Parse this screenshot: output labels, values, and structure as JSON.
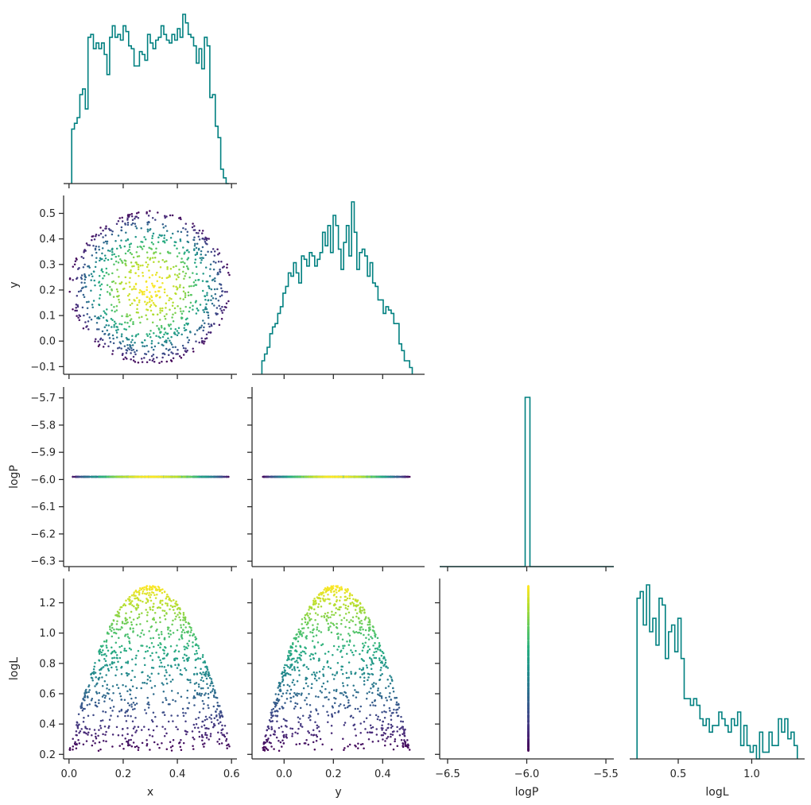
{
  "colors": {
    "hist": "#008080",
    "viridis": [
      "#440154",
      "#472d7b",
      "#3b528b",
      "#2c728e",
      "#21918c",
      "#28ae80",
      "#5ec962",
      "#addc30",
      "#fde725"
    ]
  },
  "chart_data": [
    {
      "type": "histogram",
      "panel": "x-hist",
      "variable": "x",
      "xlim": [
        -0.02,
        0.62
      ],
      "xticks": [
        0.0,
        0.2,
        0.4,
        0.6
      ],
      "bin_range": [
        0.01,
        0.59
      ],
      "counts": [
        19,
        21,
        23,
        31,
        33,
        26,
        51,
        52,
        47,
        49,
        47,
        49,
        45,
        38,
        51,
        55,
        51,
        52,
        50,
        55,
        53,
        48,
        47,
        41,
        41,
        46,
        45,
        43,
        52,
        49,
        47,
        50,
        51,
        55,
        52,
        50,
        49,
        52,
        50,
        54,
        51,
        59,
        56,
        52,
        51,
        48,
        42,
        47,
        40,
        51,
        48,
        30,
        31,
        20,
        16,
        5,
        2,
        0
      ]
    },
    {
      "type": "scatter",
      "panel": "y-vs-x",
      "xvar": "x",
      "yvar": "y",
      "xlim": [
        -0.02,
        0.62
      ],
      "ylim": [
        -0.13,
        0.57
      ],
      "xticks": [
        0.0,
        0.2,
        0.4,
        0.6
      ],
      "yticks": [
        -0.1,
        0.0,
        0.1,
        0.2,
        0.3,
        0.4,
        0.5
      ],
      "ytick_labels": [
        "−0.1",
        "0.0",
        "0.1",
        "0.2",
        "0.3",
        "0.4",
        "0.5"
      ],
      "ylabel": "y",
      "n_points": 1000,
      "center": [
        0.3,
        0.21
      ],
      "radius": 0.3,
      "color_by": "logL"
    },
    {
      "type": "histogram",
      "panel": "y-hist",
      "variable": "y",
      "xlim": [
        -0.13,
        0.57
      ],
      "xticks": [
        0.0,
        0.2,
        0.4
      ],
      "bin_range": [
        -0.09,
        0.52
      ],
      "counts": [
        4,
        6,
        8,
        12,
        14,
        15,
        18,
        20,
        24,
        26,
        30,
        29,
        33,
        30,
        27,
        35,
        34,
        32,
        36,
        35,
        32,
        34,
        36,
        42,
        38,
        44,
        36,
        47,
        44,
        37,
        31,
        39,
        44,
        35,
        51,
        42,
        31,
        36,
        37,
        35,
        29,
        33,
        27,
        26,
        22,
        22,
        18,
        20,
        19,
        18,
        15,
        15,
        9,
        7,
        4,
        4,
        2
      ]
    },
    {
      "type": "scatter",
      "panel": "logP-vs-x",
      "xvar": "x",
      "yvar": "logP",
      "xlim": [
        -0.02,
        0.62
      ],
      "ylim": [
        -6.32,
        -5.66
      ],
      "xticks": [
        0.0,
        0.2,
        0.4,
        0.6
      ],
      "yticks": [
        -5.7,
        -5.8,
        -5.9,
        -6.0,
        -6.1,
        -6.2,
        -6.3
      ],
      "ytick_labels": [
        "−5.7",
        "−5.8",
        "−5.9",
        "−6.0",
        "−6.1",
        "−6.2",
        "−6.3"
      ],
      "ylabel": "logP",
      "constant_y": -5.99,
      "x_range": [
        0.01,
        0.59
      ],
      "color_by": "logL"
    },
    {
      "type": "scatter",
      "panel": "logP-vs-y",
      "xvar": "y",
      "yvar": "logP",
      "xlim": [
        -0.13,
        0.57
      ],
      "ylim": [
        -6.32,
        -5.66
      ],
      "xticks": [
        0.0,
        0.2,
        0.4
      ],
      "yticks": [
        -5.7,
        -5.8,
        -5.9,
        -6.0,
        -6.1,
        -6.2,
        -6.3
      ],
      "constant_y": -5.99,
      "x_range": [
        -0.09,
        0.52
      ],
      "color_by": "logL"
    },
    {
      "type": "histogram",
      "panel": "logP-hist",
      "variable": "logP",
      "xlim": [
        -6.55,
        -5.45
      ],
      "xticks": [
        -6.5,
        -6.0,
        -5.5
      ],
      "bin": [
        -6.01,
        -5.98
      ],
      "peak_height": 1.0
    },
    {
      "type": "scatter",
      "panel": "logL-vs-x",
      "xvar": "x",
      "yvar": "logL",
      "xlim": [
        -0.02,
        0.62
      ],
      "ylim": [
        0.17,
        1.36
      ],
      "xticks": [
        0.0,
        0.2,
        0.4,
        0.6
      ],
      "xtick_labels": [
        "0.0",
        "0.2",
        "0.4",
        "0.6"
      ],
      "yticks": [
        0.2,
        0.4,
        0.6,
        0.8,
        1.0,
        1.2
      ],
      "ytick_labels": [
        "0.2",
        "0.4",
        "0.6",
        "0.8",
        "1.0",
        "1.2"
      ],
      "xlabel": "x",
      "ylabel": "logL",
      "peak": [
        0.3,
        1.31
      ],
      "logL_range": [
        0.22,
        1.31
      ],
      "color_by": "logL"
    },
    {
      "type": "scatter",
      "panel": "logL-vs-y",
      "xvar": "y",
      "yvar": "logL",
      "xlim": [
        -0.13,
        0.57
      ],
      "ylim": [
        0.17,
        1.36
      ],
      "xticks": [
        0.0,
        0.2,
        0.4
      ],
      "xtick_labels": [
        "0.0",
        "0.2",
        "0.4"
      ],
      "yticks": [
        0.2,
        0.4,
        0.6,
        0.8,
        1.0,
        1.2
      ],
      "xlabel": "y",
      "peak": [
        0.21,
        1.31
      ],
      "logL_range": [
        0.22,
        1.31
      ],
      "color_by": "logL"
    },
    {
      "type": "scatter",
      "panel": "logL-vs-logP",
      "xvar": "logP",
      "yvar": "logL",
      "xlim": [
        -6.55,
        -5.45
      ],
      "ylim": [
        0.17,
        1.36
      ],
      "xticks": [
        -6.5,
        -6.0,
        -5.5
      ],
      "xtick_labels": [
        "−6.5",
        "−6.0",
        "−5.5"
      ],
      "yticks": [
        0.2,
        0.4,
        0.6,
        0.8,
        1.0,
        1.2
      ],
      "xlabel": "logP",
      "constant_x": -5.99,
      "logL_range": [
        0.22,
        1.31
      ],
      "color_by": "logL"
    },
    {
      "type": "histogram",
      "panel": "logL-hist",
      "variable": "logL",
      "xlim": [
        0.17,
        1.36
      ],
      "xticks": [
        0.5,
        1.0
      ],
      "xtick_labels": [
        "0.5",
        "1.0"
      ],
      "xlabel": "logL",
      "bin_range": [
        0.22,
        1.31
      ],
      "counts": [
        24,
        25,
        20,
        26,
        19,
        21,
        17,
        24,
        23,
        15,
        19,
        20,
        16,
        21,
        15,
        9,
        9,
        8,
        9,
        8,
        6,
        5,
        6,
        4,
        5,
        5,
        7,
        6,
        5,
        4,
        6,
        5,
        7,
        2,
        5,
        2,
        1,
        2,
        0,
        4,
        1,
        1,
        4,
        2,
        2,
        6,
        4,
        6,
        3,
        4,
        2
      ]
    }
  ]
}
